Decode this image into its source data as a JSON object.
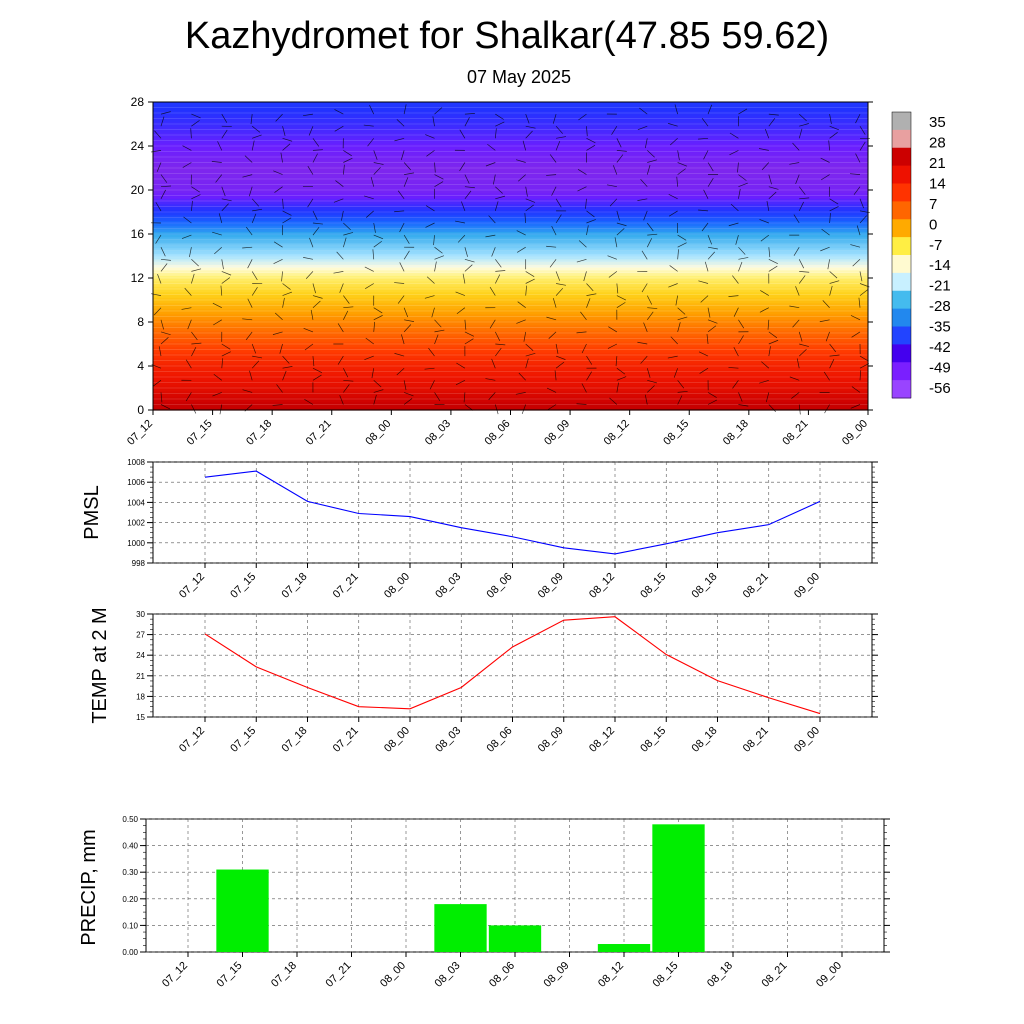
{
  "header": {
    "title": "Kazhydromet for Shalkar(47.85 59.62)",
    "subtitle": "07 May 2025"
  },
  "time_labels": [
    "07_12",
    "07_15",
    "07_18",
    "07_21",
    "08_00",
    "08_03",
    "08_06",
    "08_09",
    "08_12",
    "08_15",
    "08_18",
    "08_21",
    "09_00"
  ],
  "chart_data": [
    {
      "type": "heatmap",
      "title": "",
      "xlabel": "",
      "ylabel": "",
      "categories": [
        "07_12",
        "07_15",
        "07_18",
        "07_21",
        "08_00",
        "08_03",
        "08_06",
        "08_09",
        "08_12",
        "08_15",
        "08_18",
        "08_21",
        "09_00"
      ],
      "yticks": [
        0,
        4,
        8,
        12,
        16,
        20,
        24,
        28
      ],
      "ylim": [
        0,
        28
      ],
      "colorbar": {
        "labels": [
          "35",
          "28",
          "21",
          "14",
          "7",
          "0",
          "-7",
          "-14",
          "-21",
          "-28",
          "-35",
          "-42",
          "-49",
          "-56"
        ],
        "colors": [
          "#b0b0b0",
          "#e8a0a0",
          "#cc0000",
          "#ee1100",
          "#ff3300",
          "#ff6600",
          "#ffaa00",
          "#ffee44",
          "#fffad0",
          "#c8f0ff",
          "#44bbee",
          "#2288ee",
          "#2244ff",
          "#4400ee",
          "#7a1fff",
          "#9944ff"
        ]
      },
      "temperature_profile": [
        {
          "level": 0,
          "value": 28
        },
        {
          "level": 2,
          "value": 22
        },
        {
          "level": 4,
          "value": 18
        },
        {
          "level": 6,
          "value": 12
        },
        {
          "level": 8,
          "value": 5
        },
        {
          "level": 10,
          "value": -2
        },
        {
          "level": 12,
          "value": -9
        },
        {
          "level": 13,
          "value": -16
        },
        {
          "level": 14,
          "value": -22
        },
        {
          "level": 16,
          "value": -30
        },
        {
          "level": 18,
          "value": -45
        },
        {
          "level": 20,
          "value": -55
        },
        {
          "level": 22,
          "value": -57
        },
        {
          "level": 24,
          "value": -52
        },
        {
          "level": 26,
          "value": -48
        },
        {
          "level": 28,
          "value": -45
        }
      ]
    },
    {
      "type": "line",
      "title": "",
      "xlabel": "",
      "ylabel": "PMSL",
      "categories": [
        "07_12",
        "07_15",
        "07_18",
        "07_21",
        "08_00",
        "08_03",
        "08_06",
        "08_09",
        "08_12",
        "08_15",
        "08_18",
        "08_21",
        "09_00"
      ],
      "series": [
        {
          "values": [
            1006.5,
            1007.1,
            1004.1,
            1002.9,
            1002.6,
            1001.5,
            1000.6,
            999.5,
            998.9,
            999.9,
            1001.0,
            1001.8,
            1004.1
          ],
          "color": "#0000ff"
        }
      ],
      "yticks": [
        998,
        1000,
        1002,
        1004,
        1006,
        1008
      ],
      "ylim": [
        998,
        1008
      ]
    },
    {
      "type": "line",
      "title": "",
      "xlabel": "",
      "ylabel": "TEMP at 2 M",
      "categories": [
        "07_12",
        "07_15",
        "07_18",
        "07_21",
        "08_00",
        "08_03",
        "08_06",
        "08_09",
        "08_12",
        "08_15",
        "08_18",
        "08_21",
        "09_00"
      ],
      "series": [
        {
          "values": [
            27.1,
            22.3,
            19.3,
            16.5,
            16.2,
            19.3,
            25.2,
            29.1,
            29.6,
            24.1,
            20.3,
            17.8,
            15.5
          ],
          "color": "#ff0000"
        }
      ],
      "yticks": [
        15,
        18,
        21,
        24,
        27,
        30
      ],
      "ylim": [
        15,
        30
      ]
    },
    {
      "type": "bar",
      "title": "",
      "xlabel": "",
      "ylabel": "PRECIP, mm",
      "categories": [
        "07_12",
        "07_15",
        "07_18",
        "07_21",
        "08_00",
        "08_03",
        "08_06",
        "08_09",
        "08_12",
        "08_15",
        "08_18",
        "08_21",
        "09_00"
      ],
      "values": [
        0,
        0.31,
        0,
        0,
        0,
        0.18,
        0.1,
        0,
        0.03,
        0.48,
        0,
        0,
        0
      ],
      "color": "#00ee00",
      "yticks": [
        "0.00",
        "0.10",
        "0.20",
        "0.30",
        "0.40",
        "0.50"
      ],
      "ylim": [
        0,
        0.5
      ]
    }
  ]
}
